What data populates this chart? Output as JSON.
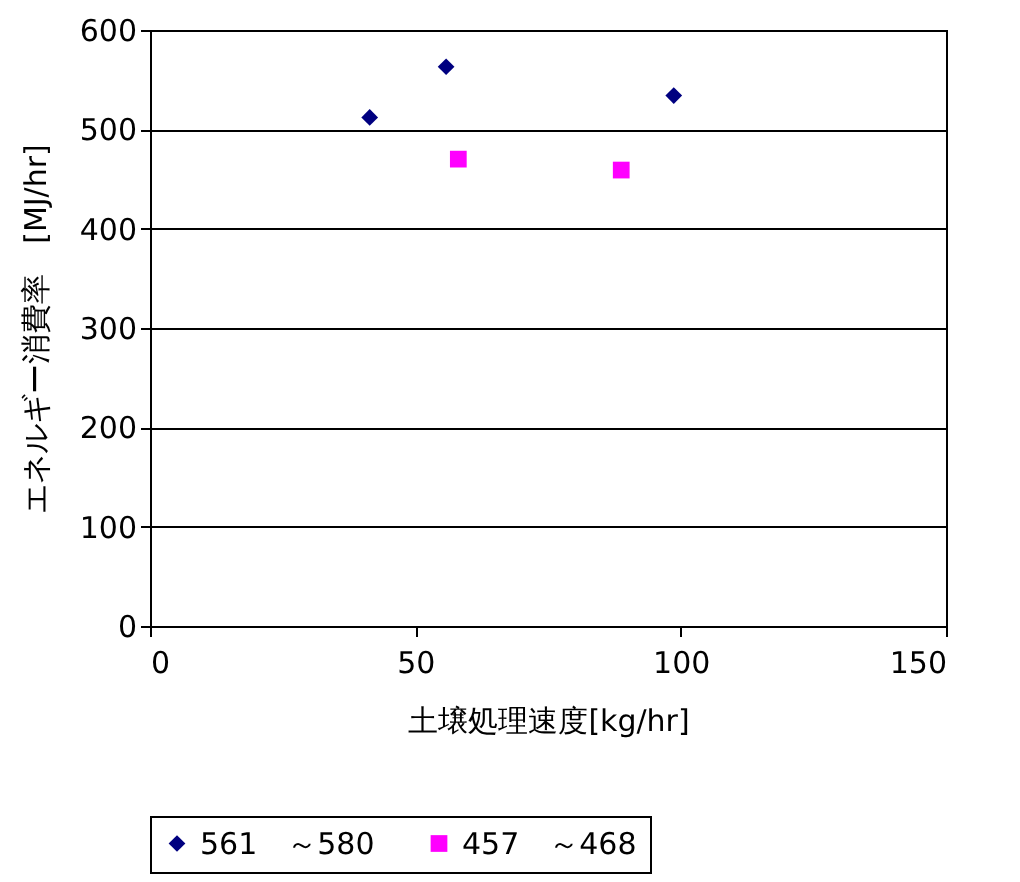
{
  "chart_data": {
    "type": "scatter",
    "xlabel": "土壌処理速度[kg/hr]",
    "ylabel": "エネルギー消費率　[MJ/hr]",
    "xlim": [
      0,
      150
    ],
    "xticks": [
      0,
      50,
      100,
      150
    ],
    "ylim": [
      0,
      600
    ],
    "yticks": [
      0,
      100,
      200,
      300,
      400,
      500,
      600
    ],
    "grid": "y",
    "legend": "bottom",
    "series": [
      {
        "name": "561　～580",
        "color": "#000080",
        "marker": "diamond",
        "x": [
          41.4,
          55.8,
          98.7
        ],
        "values": [
          512,
          563,
          534
        ]
      },
      {
        "name": "457　～468",
        "color": "#ff00ff",
        "marker": "square",
        "x": [
          58.1,
          88.8
        ],
        "values": [
          470,
          459
        ]
      }
    ]
  }
}
